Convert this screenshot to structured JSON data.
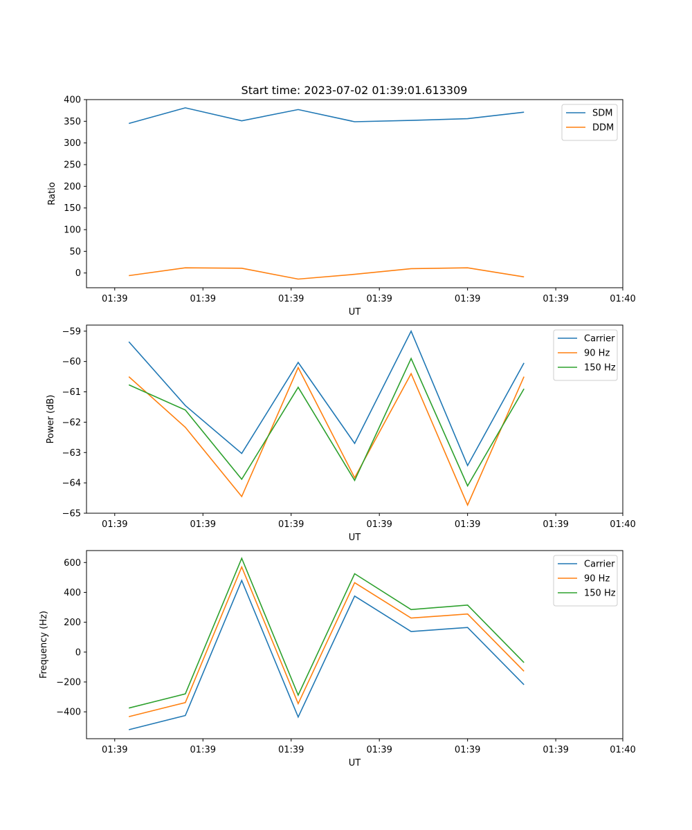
{
  "chart_data": [
    {
      "type": "line",
      "title": "Start time: 2023-07-02 01:39:01.613309",
      "xlabel": "UT",
      "ylabel": "Ratio",
      "xlim": [
        -0.5,
        9.0
      ],
      "ylim": [
        -34,
        400
      ],
      "yticks": [
        0,
        50,
        100,
        150,
        200,
        250,
        300,
        350,
        400
      ],
      "xticks": [
        0,
        1.5625,
        3.125,
        4.6875,
        6.25,
        7.8125,
        9.0
      ],
      "xtick_labels": [
        "01:39",
        "01:39",
        "01:39",
        "01:39",
        "01:39",
        "01:39",
        "01:40"
      ],
      "x": [
        0.25,
        1.25,
        2.25,
        3.25,
        4.25,
        5.25,
        6.25,
        7.25
      ],
      "legend": "top-right",
      "series": [
        {
          "name": "SDM",
          "color": "#1f77b4",
          "values": [
            345,
            381,
            351,
            377,
            349,
            352,
            356,
            371
          ]
        },
        {
          "name": "DDM",
          "color": "#ff7f0e",
          "values": [
            -6,
            12,
            11,
            -14,
            -3,
            10,
            12,
            -9
          ]
        }
      ]
    },
    {
      "type": "line",
      "title": "",
      "xlabel": "UT",
      "ylabel": "Power (dB)",
      "xlim": [
        -0.5,
        9.0
      ],
      "ylim": [
        -65,
        -58.8
      ],
      "yticks": [
        -65,
        -64,
        -63,
        -62,
        -61,
        -60,
        -59
      ],
      "xticks": [
        0,
        1.5625,
        3.125,
        4.6875,
        6.25,
        7.8125,
        9.0
      ],
      "xtick_labels": [
        "01:39",
        "01:39",
        "01:39",
        "01:39",
        "01:39",
        "01:39",
        "01:40"
      ],
      "x": [
        0.25,
        1.25,
        2.25,
        3.25,
        4.25,
        5.25,
        6.25,
        7.25
      ],
      "legend": "top-right",
      "series": [
        {
          "name": "Carrier",
          "color": "#1f77b4",
          "values": [
            -59.35,
            -61.45,
            -63.03,
            -60.03,
            -62.7,
            -59.0,
            -63.43,
            -60.05
          ]
        },
        {
          "name": "90 Hz",
          "color": "#ff7f0e",
          "values": [
            -60.5,
            -62.17,
            -64.45,
            -60.2,
            -63.83,
            -60.4,
            -64.73,
            -60.5
          ]
        },
        {
          "name": "150 Hz",
          "color": "#2ca02c",
          "values": [
            -60.77,
            -61.6,
            -63.88,
            -60.85,
            -63.92,
            -59.9,
            -64.1,
            -60.9
          ]
        }
      ]
    },
    {
      "type": "line",
      "title": "",
      "xlabel": "UT",
      "ylabel": "Frequency (Hz)",
      "xlim": [
        -0.5,
        9.0
      ],
      "ylim": [
        -580,
        680
      ],
      "yticks": [
        -400,
        -200,
        0,
        200,
        400,
        600
      ],
      "xticks": [
        0,
        1.5625,
        3.125,
        4.6875,
        6.25,
        7.8125,
        9.0
      ],
      "xtick_labels": [
        "01:39",
        "01:39",
        "01:39",
        "01:39",
        "01:39",
        "01:39",
        "01:40"
      ],
      "x": [
        0.25,
        1.25,
        2.25,
        3.25,
        4.25,
        5.25,
        6.25,
        7.25
      ],
      "legend": "top-right",
      "series": [
        {
          "name": "Carrier",
          "color": "#1f77b4",
          "values": [
            -520,
            -425,
            480,
            -435,
            375,
            138,
            165,
            -218
          ]
        },
        {
          "name": "90 Hz",
          "color": "#ff7f0e",
          "values": [
            -432,
            -338,
            570,
            -345,
            465,
            228,
            255,
            -128
          ]
        },
        {
          "name": "150 Hz",
          "color": "#2ca02c",
          "values": [
            -375,
            -280,
            628,
            -288,
            525,
            285,
            315,
            -70
          ]
        }
      ]
    }
  ]
}
